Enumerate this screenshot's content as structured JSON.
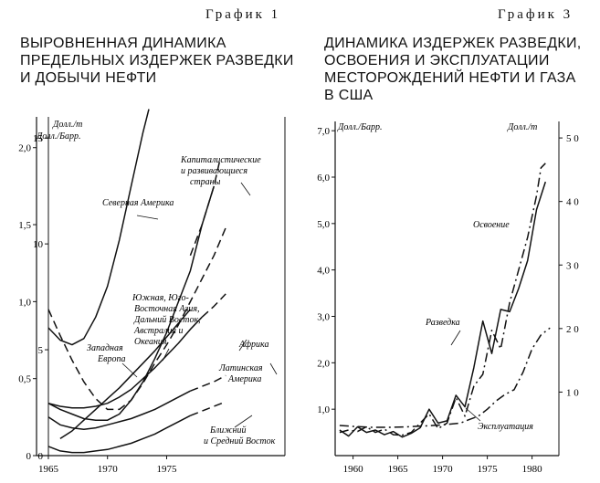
{
  "left": {
    "graph_label": "График 1",
    "title_lines": [
      "ВЫРОВНЕННАЯ ДИНАМИКА",
      "ПРЕДЕЛЬНЫХ ИЗДЕРЖЕК РАЗВЕДКИ",
      "И ДОБЫЧИ НЕФТИ"
    ]
  },
  "right": {
    "graph_label": "График 3",
    "title_lines": [
      "ДИНАМИКА ИЗДЕРЖЕК РАЗВЕДКИ,",
      "ОСВОЕНИЯ И ЭКСПЛУАТАЦИИ",
      "МЕСТОРОЖДЕНИЙ НЕФТИ И ГАЗА",
      "В США"
    ]
  },
  "chart_data": [
    {
      "type": "line",
      "xlim": [
        1964,
        1985
      ],
      "x_ticks": [
        "1965",
        "1970",
        "1975"
      ],
      "x_tick_values": [
        1965,
        1970,
        1975
      ],
      "left_axis": {
        "label": "Долл./Барр.",
        "ylim": [
          0,
          2.2
        ],
        "ticks": [
          "0",
          "0,5",
          "1,0",
          "1,5",
          "2,0"
        ],
        "tick_values": [
          0,
          0.5,
          1.0,
          1.5,
          2.0
        ]
      },
      "inner_axis": {
        "label": "Долл./т",
        "ylim": [
          0,
          16
        ],
        "ticks": [
          "0",
          "5",
          "10",
          "15"
        ],
        "tick_values": [
          0,
          5,
          10,
          15
        ]
      },
      "axis_unit": "Долл./Барр.",
      "series": [
        {
          "name": "Северная Америка",
          "dash": "solid",
          "points": [
            [
              1965,
              0.83
            ],
            [
              1966,
              0.75
            ],
            [
              1967,
              0.72
            ],
            [
              1968,
              0.76
            ],
            [
              1969,
              0.9
            ],
            [
              1970,
              1.1
            ],
            [
              1971,
              1.4
            ],
            [
              1972,
              1.75
            ],
            [
              1973,
              2.1
            ],
            [
              1973.5,
              2.25
            ]
          ]
        },
        {
          "name": "Капиталистические и развивающиеся страны",
          "dash": "solid",
          "points": [
            [
              1965,
              0.34
            ],
            [
              1966,
              0.3
            ],
            [
              1967,
              0.27
            ],
            [
              1968,
              0.24
            ],
            [
              1969,
              0.23
            ],
            [
              1970,
              0.23
            ],
            [
              1971,
              0.27
            ],
            [
              1972,
              0.36
            ],
            [
              1973,
              0.48
            ],
            [
              1974,
              0.63
            ],
            [
              1975,
              0.8
            ],
            [
              1976,
              1.0
            ],
            [
              1977,
              1.2
            ],
            [
              1978,
              1.5
            ],
            [
              1979,
              1.75
            ]
          ]
        },
        {
          "name": "Капиталистические и развивающиеся страны (прогноз)",
          "dash": "dashed",
          "points": [
            [
              1977,
              1.3
            ],
            [
              1978,
              1.5
            ],
            [
              1979,
              1.75
            ],
            [
              1979.5,
              1.92
            ]
          ]
        },
        {
          "name": "Западная Европа",
          "dash": "dashed",
          "points": [
            [
              1965,
              0.95
            ],
            [
              1966,
              0.78
            ],
            [
              1967,
              0.62
            ],
            [
              1968,
              0.48
            ],
            [
              1969,
              0.37
            ],
            [
              1970,
              0.3
            ],
            [
              1971,
              0.3
            ],
            [
              1972,
              0.36
            ],
            [
              1973,
              0.47
            ],
            [
              1974,
              0.6
            ],
            [
              1975,
              0.72
            ],
            [
              1976,
              0.85
            ],
            [
              1977,
              1.0
            ],
            [
              1978,
              1.15
            ],
            [
              1979,
              1.3
            ],
            [
              1980,
              1.48
            ]
          ]
        },
        {
          "name": "Южная, Юго-Восточная Азия, Дальний Восток, Австралия и Океания",
          "dash": "solid",
          "points": [
            [
              1966,
              0.11
            ],
            [
              1967,
              0.16
            ],
            [
              1968,
              0.23
            ],
            [
              1969,
              0.3
            ],
            [
              1970,
              0.37
            ],
            [
              1971,
              0.44
            ],
            [
              1972,
              0.52
            ],
            [
              1973,
              0.6
            ],
            [
              1974,
              0.68
            ],
            [
              1975,
              0.77
            ],
            [
              1976,
              0.86
            ],
            [
              1977,
              0.95
            ]
          ]
        },
        {
          "name": "Африка",
          "dash": "solid",
          "points": [
            [
              1965,
              0.34
            ],
            [
              1966,
              0.32
            ],
            [
              1967,
              0.31
            ],
            [
              1968,
              0.31
            ],
            [
              1969,
              0.32
            ],
            [
              1970,
              0.34
            ],
            [
              1971,
              0.38
            ],
            [
              1972,
              0.43
            ],
            [
              1973,
              0.5
            ],
            [
              1974,
              0.57
            ],
            [
              1975,
              0.65
            ],
            [
              1976,
              0.73
            ],
            [
              1977,
              0.82
            ],
            [
              1978,
              0.9
            ]
          ]
        },
        {
          "name": "Африка (прогноз)",
          "dash": "dashed",
          "points": [
            [
              1978,
              0.9
            ],
            [
              1979,
              0.97
            ],
            [
              1980,
              1.05
            ]
          ]
        },
        {
          "name": "Латинская Америка",
          "dash": "solid",
          "points": [
            [
              1965,
              0.25
            ],
            [
              1966,
              0.2
            ],
            [
              1967,
              0.18
            ],
            [
              1968,
              0.17
            ],
            [
              1969,
              0.18
            ],
            [
              1970,
              0.2
            ],
            [
              1971,
              0.22
            ],
            [
              1972,
              0.24
            ],
            [
              1973,
              0.27
            ],
            [
              1974,
              0.3
            ],
            [
              1975,
              0.34
            ],
            [
              1976,
              0.38
            ],
            [
              1977,
              0.42
            ]
          ]
        },
        {
          "name": "Латинская Америка (прогноз)",
          "dash": "dashed",
          "points": [
            [
              1977,
              0.42
            ],
            [
              1978,
              0.45
            ],
            [
              1979,
              0.48
            ],
            [
              1980,
              0.52
            ]
          ]
        },
        {
          "name": "Ближний и Средний Восток",
          "dash": "solid",
          "points": [
            [
              1965,
              0.06
            ],
            [
              1966,
              0.03
            ],
            [
              1967,
              0.02
            ],
            [
              1968,
              0.02
            ],
            [
              1969,
              0.03
            ],
            [
              1970,
              0.04
            ],
            [
              1971,
              0.06
            ],
            [
              1972,
              0.08
            ],
            [
              1973,
              0.11
            ],
            [
              1974,
              0.14
            ],
            [
              1975,
              0.18
            ],
            [
              1976,
              0.22
            ],
            [
              1977,
              0.26
            ]
          ]
        },
        {
          "name": "Ближний и Средний Восток (прогноз)",
          "dash": "dashed",
          "points": [
            [
              1977,
              0.26
            ],
            [
              1978,
              0.29
            ],
            [
              1979,
              0.32
            ],
            [
              1980,
              0.35
            ]
          ]
        }
      ],
      "annotations": [
        "Северная Америка",
        "Капиталистические",
        "и развивающиеся",
        "страны",
        "Южная, Юго-",
        "Восточная Азия,",
        "Дальний Восток,",
        "Австралия и",
        "Океания",
        "Западная",
        "Европа",
        "Африка",
        "Латинская",
        "Америка",
        "Ближний",
        "и Средний Восток"
      ]
    },
    {
      "type": "line",
      "xlim": [
        1958,
        1983
      ],
      "x_ticks": [
        "1960",
        "1965",
        "1970",
        "1975",
        "1980"
      ],
      "x_tick_values": [
        1960,
        1965,
        1970,
        1975,
        1980
      ],
      "left_axis": {
        "label": "Долл./Барр.",
        "ylim": [
          0,
          7.2
        ],
        "ticks": [
          "1,0",
          "2,0",
          "3,0",
          "4,0",
          "5,0",
          "6,0",
          "7,0"
        ],
        "tick_values": [
          1,
          2,
          3,
          4,
          5,
          6,
          7
        ]
      },
      "right_axis": {
        "label": "Долл./т",
        "ylim": [
          0,
          52.6
        ],
        "ticks": [
          "1 0",
          "2 0",
          "3 0",
          "4 0",
          "5 0"
        ],
        "tick_values": [
          10,
          20,
          30,
          40,
          50
        ]
      },
      "axis_unit": "Долл./Барр.",
      "series": [
        {
          "name": "Освоение",
          "dash": "dashdot",
          "points": [
            [
              1958.5,
              0.5
            ],
            [
              1959.5,
              0.55
            ],
            [
              1960.5,
              0.52
            ],
            [
              1961.5,
              0.62
            ],
            [
              1962.5,
              0.5
            ],
            [
              1963.5,
              0.57
            ],
            [
              1964.5,
              0.45
            ],
            [
              1965.5,
              0.44
            ],
            [
              1966.5,
              0.5
            ],
            [
              1967.5,
              0.7
            ],
            [
              1968.5,
              0.9
            ],
            [
              1969.5,
              0.58
            ],
            [
              1970.5,
              0.7
            ],
            [
              1971.5,
              1.25
            ],
            [
              1972.5,
              0.85
            ],
            [
              1973.5,
              1.5
            ],
            [
              1974.5,
              1.75
            ],
            [
              1975.5,
              2.7
            ],
            [
              1976.5,
              2.3
            ],
            [
              1977.5,
              3.3
            ],
            [
              1978.5,
              4.0
            ],
            [
              1979.5,
              4.7
            ],
            [
              1980.5,
              5.6
            ],
            [
              1981,
              6.2
            ],
            [
              1981.5,
              6.3
            ]
          ]
        },
        {
          "name": "Разведка",
          "dash": "solid",
          "points": [
            [
              1958.5,
              0.55
            ],
            [
              1959.5,
              0.42
            ],
            [
              1960.5,
              0.62
            ],
            [
              1961.5,
              0.5
            ],
            [
              1962.5,
              0.55
            ],
            [
              1963.5,
              0.45
            ],
            [
              1964.5,
              0.52
            ],
            [
              1965.5,
              0.4
            ],
            [
              1966.5,
              0.48
            ],
            [
              1967.5,
              0.6
            ],
            [
              1968.5,
              1.0
            ],
            [
              1969.5,
              0.7
            ],
            [
              1970.5,
              0.75
            ],
            [
              1971.5,
              1.3
            ],
            [
              1972.5,
              1.05
            ],
            [
              1973.5,
              1.9
            ],
            [
              1974.5,
              2.9
            ],
            [
              1975.5,
              2.2
            ],
            [
              1976.5,
              3.15
            ],
            [
              1977.5,
              3.1
            ],
            [
              1978.5,
              3.6
            ],
            [
              1979.5,
              4.2
            ],
            [
              1980.5,
              5.3
            ],
            [
              1981.5,
              5.9
            ]
          ]
        },
        {
          "name": "Эксплуатация",
          "dash": "dashdot",
          "points": [
            [
              1958.5,
              0.65
            ],
            [
              1960,
              0.63
            ],
            [
              1962,
              0.61
            ],
            [
              1964,
              0.61
            ],
            [
              1966,
              0.62
            ],
            [
              1968,
              0.64
            ],
            [
              1970,
              0.66
            ],
            [
              1972,
              0.7
            ],
            [
              1973,
              0.78
            ],
            [
              1974,
              0.85
            ],
            [
              1975,
              1.0
            ],
            [
              1976,
              1.18
            ],
            [
              1977,
              1.32
            ],
            [
              1978,
              1.42
            ],
            [
              1979,
              1.8
            ],
            [
              1980,
              2.3
            ],
            [
              1981,
              2.6
            ],
            [
              1982,
              2.75
            ]
          ]
        }
      ],
      "annotations": [
        "Освоение",
        "Разведка",
        "Эксплуатация"
      ]
    }
  ]
}
